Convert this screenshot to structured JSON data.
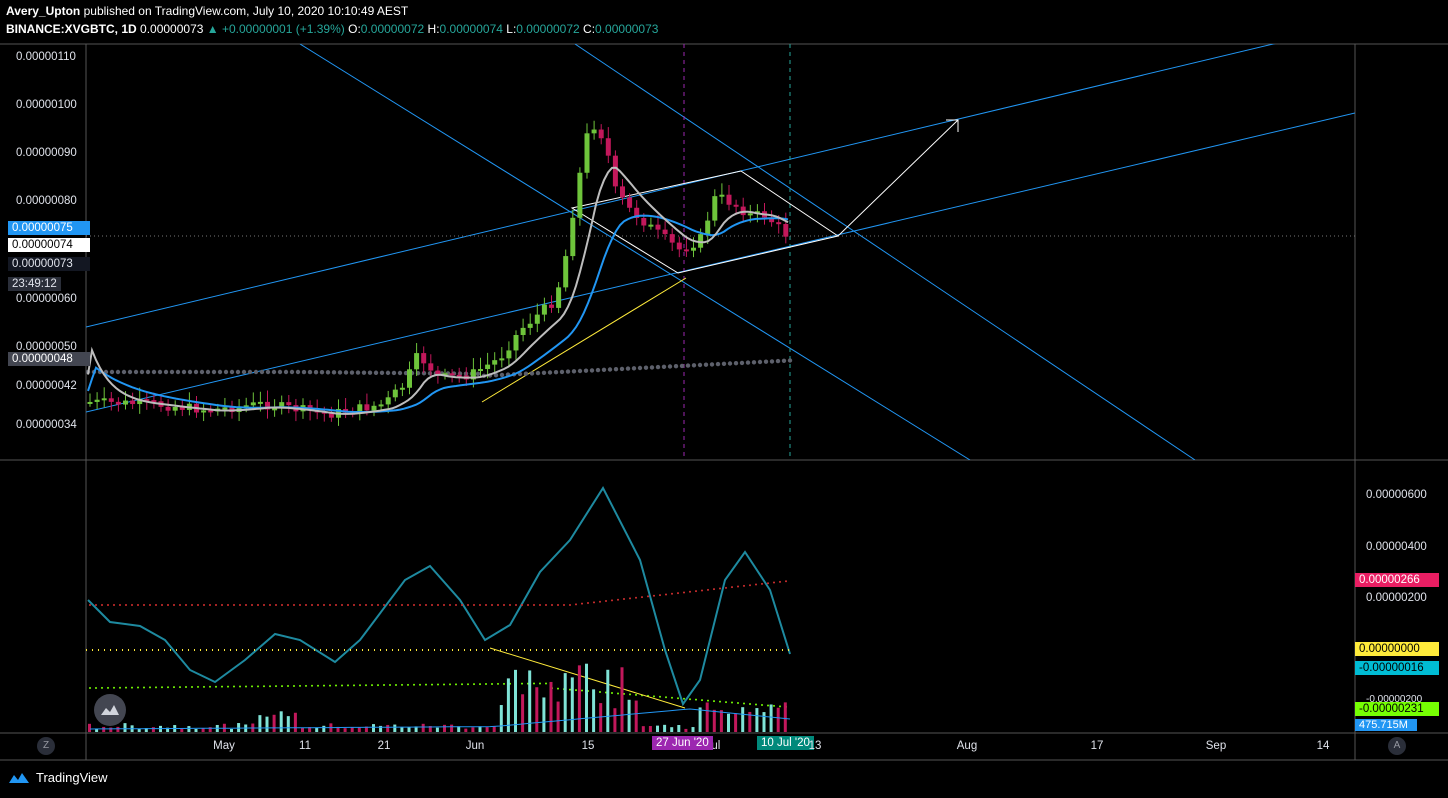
{
  "header": {
    "publisher": "Avery_Upton",
    "published_text": "published on TradingView.com, July 10, 2020 10:10:49 AEST",
    "symbol": "BINANCE:XVGBTC, 1D",
    "last": "0.00000073",
    "change": "▲ +0.00000001 (+1.39%)",
    "o_label": "O:",
    "o": "0.00000072",
    "h_label": "H:",
    "h": "0.00000074",
    "l_label": "L:",
    "l": "0.00000072",
    "c_label": "C:",
    "c": "0.00000073"
  },
  "price_axis": [
    "0.00000110",
    "0.00000100",
    "0.00000090",
    "0.00000080",
    "0.00000060",
    "0.00000050",
    "0.00000042",
    "0.00000034"
  ],
  "price_tags": {
    "blue": "0.00000075",
    "white": "0.00000074",
    "dark": "0.00000073",
    "countdown": "23:49:12",
    "gray": "0.00000048"
  },
  "osc_axis": [
    "0.00000600",
    "0.00000400",
    "0.00000200"
  ],
  "osc_tags": {
    "red": "0.00000266",
    "yellow": "0.00000000",
    "cyan": "-0.00000016",
    "partial": "-0.00000200",
    "green": "-0.00000231",
    "volume": "475.715M"
  },
  "time_axis": [
    "May",
    "11",
    "21",
    "Jun",
    "15",
    "Jul",
    "Aug",
    "17",
    "Sep",
    "14"
  ],
  "time_tags": {
    "cross1": "27 Jun '20",
    "cross2": "10 Jul '20",
    "after": "13"
  },
  "footer": {
    "brand": "TradingView"
  },
  "corner": {
    "left": "Z",
    "right": "A"
  },
  "colors": {
    "up": "#6ec43b",
    "down": "#c2185b",
    "blue_line": "#2196f3",
    "fast_ma": "#9e9e9e",
    "teal_osc": "#1e8aa0",
    "red_band": "#d32f2f",
    "yellow": "#ffeb3b",
    "lime": "#76ff03"
  }
}
